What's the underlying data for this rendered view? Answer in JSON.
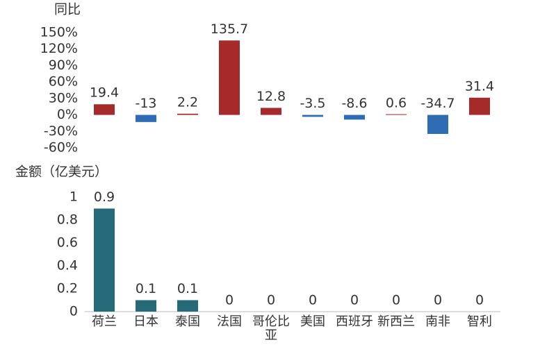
{
  "chart_data": [
    {
      "type": "bar",
      "y_label": "同比",
      "values": [
        19.4,
        -13,
        2.2,
        135.7,
        12.8,
        -3.5,
        -8.6,
        0.6,
        -34.7,
        31.4
      ],
      "color_positive": "#a52a2a",
      "color_negative": "#2e6db4",
      "ylim": [
        -60,
        150
      ],
      "yticks": [
        {
          "value": 150,
          "label": "150%"
        },
        {
          "value": 120,
          "label": "120%"
        },
        {
          "value": 90,
          "label": "90%"
        },
        {
          "value": 60,
          "label": "60%"
        },
        {
          "value": 30,
          "label": "30%"
        },
        {
          "value": 0,
          "label": "0%"
        },
        {
          "value": -30,
          "label": "-30%"
        },
        {
          "value": -60,
          "label": "-60%"
        }
      ]
    },
    {
      "type": "bar",
      "y_label": "金额（亿美元）",
      "categories": [
        "荷兰",
        "日本",
        "泰国",
        "法国",
        "哥伦比亚",
        "美国",
        "西班牙",
        "新西兰",
        "南非",
        "智利"
      ],
      "values": [
        0.9,
        0.1,
        0.1,
        0,
        0,
        0,
        0,
        0,
        0,
        0
      ],
      "color": "#266a7a",
      "ylim": [
        0,
        1
      ],
      "yticks": [
        0,
        0.2,
        0.4,
        0.6,
        0.8,
        1
      ]
    }
  ]
}
